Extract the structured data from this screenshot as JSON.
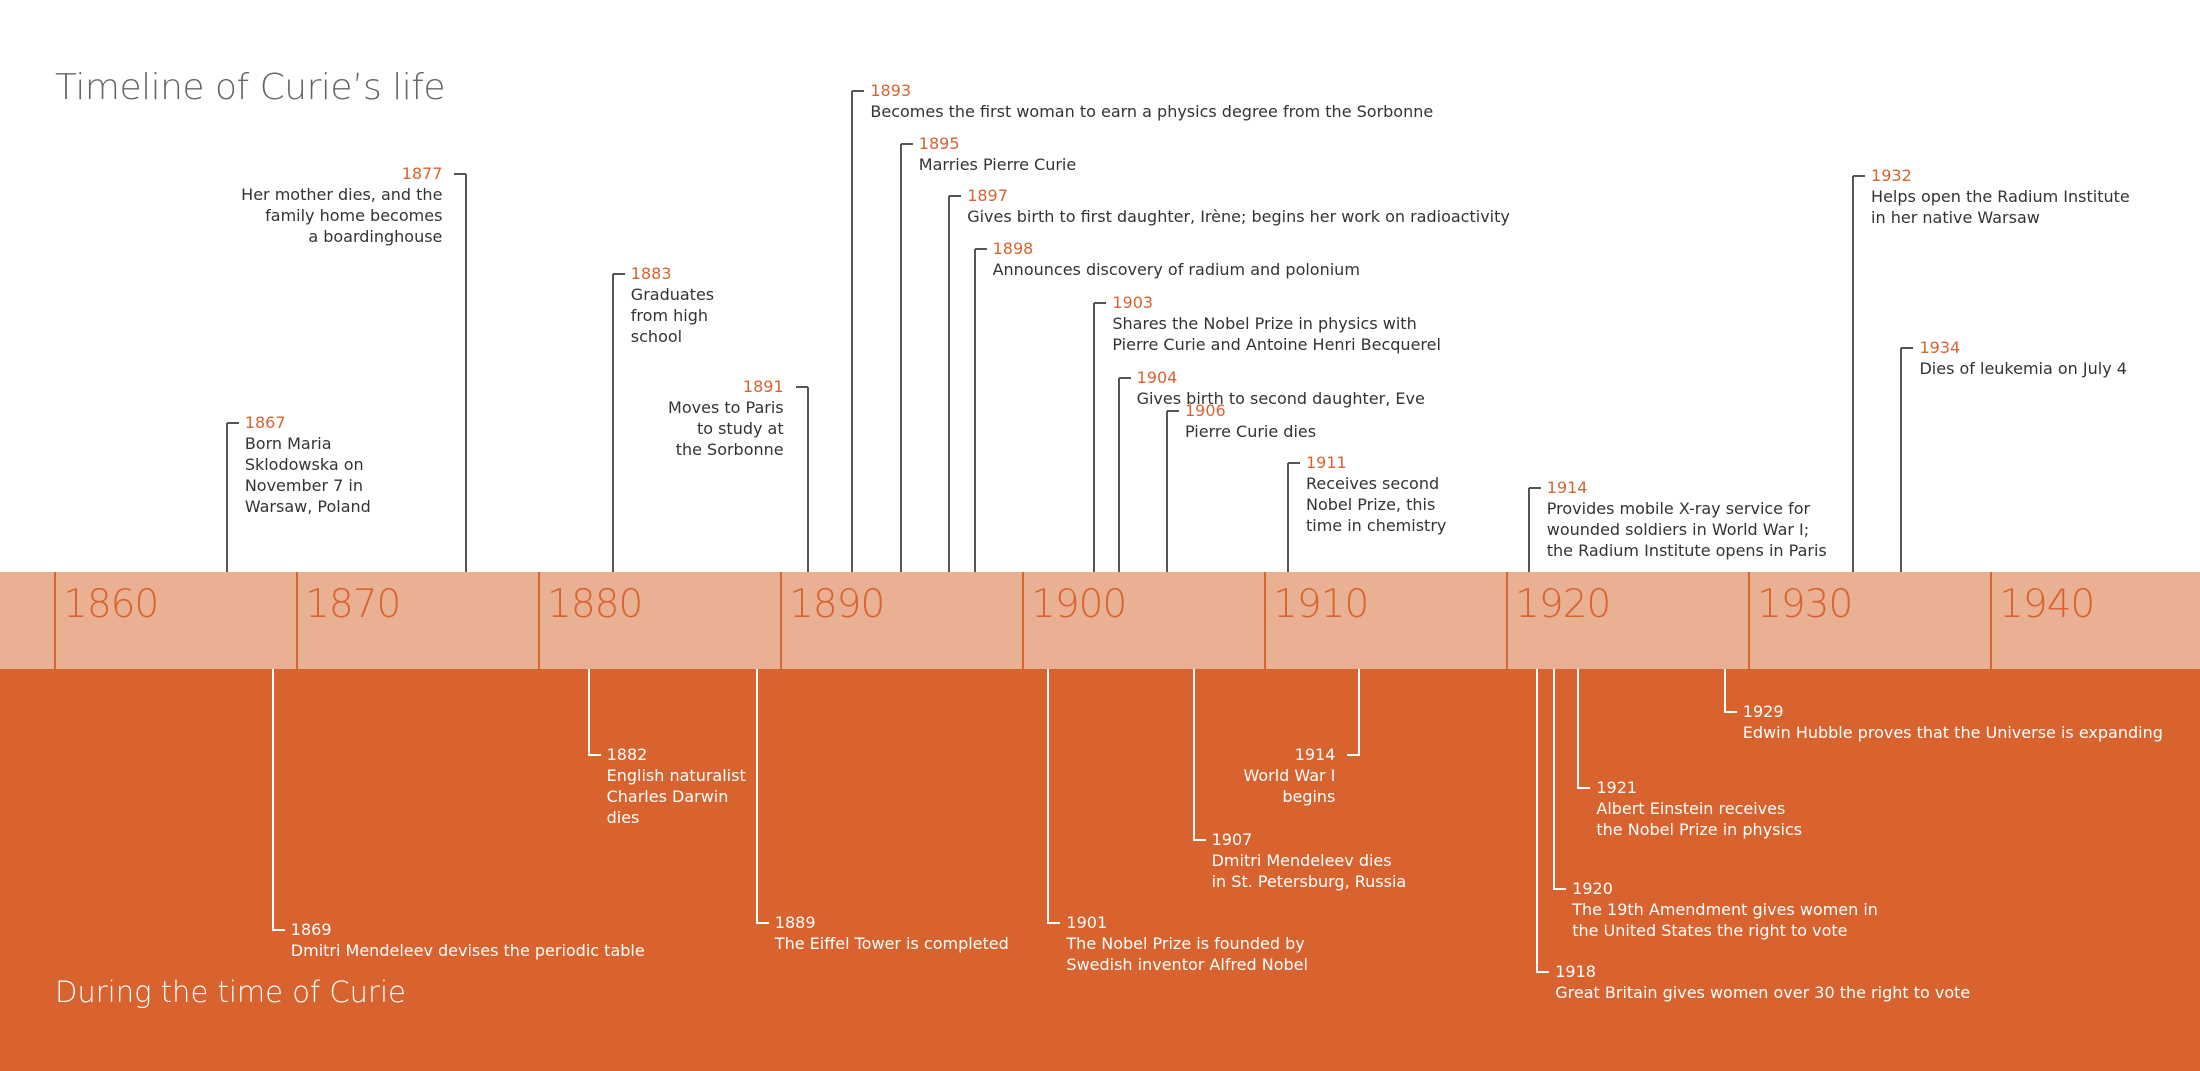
{
  "title": "Timeline of Curie’s life",
  "subtitle": "During the time of Curie",
  "colors": {
    "band": "#eab094",
    "lower": "#d9632f",
    "accent": "#d9632f",
    "text": "#333333",
    "line": "#555555",
    "white": "#ffffff"
  },
  "axis": {
    "start_year": 1860,
    "end_year": 1940
  },
  "decades": [
    "1860",
    "1870",
    "1880",
    "1890",
    "1900",
    "1910",
    "1920",
    "1930",
    "1940"
  ],
  "curie_events": [
    {
      "year": "1867",
      "date": 1867.1,
      "text": "Born Maria\nSklodowska on\nNovember 7 in\nWarsaw, Poland",
      "level": 1,
      "side": "right"
    },
    {
      "year": "1877",
      "date": 1877.0,
      "text": "Her mother dies, and the\nfamily home becomes\na boardinghouse",
      "level": 2,
      "side": "left"
    },
    {
      "year": "1883",
      "date": 1883.05,
      "text": "Graduates\nfrom high\nschool",
      "level": 3,
      "side": "right"
    },
    {
      "year": "1891",
      "date": 1891.1,
      "text": "Moves to Paris\nto study at\nthe Sorbonne",
      "level": 4,
      "side": "left"
    },
    {
      "year": "1893",
      "date": 1892.95,
      "text": "Becomes the first woman to earn a physics degree from the Sorbonne",
      "level": 5,
      "side": "right"
    },
    {
      "year": "1895",
      "date": 1894.95,
      "text": "Marries Pierre Curie",
      "level": 6,
      "side": "right"
    },
    {
      "year": "1897",
      "date": 1896.95,
      "text": "Gives birth to first daughter, Irène; begins her work on radioactivity",
      "level": 7,
      "side": "right"
    },
    {
      "year": "1898",
      "date": 1898.0,
      "text": "Announces discovery of radium and polonium",
      "level": 8,
      "side": "right"
    },
    {
      "year": "1903",
      "date": 1902.95,
      "text": "Shares the Nobel Prize in physics with\nPierre Curie and Antoine Henri Becquerel",
      "level": 9,
      "side": "right"
    },
    {
      "year": "1904",
      "date": 1903.95,
      "text": "Gives birth to second daughter, Eve",
      "level": 10,
      "side": "right"
    },
    {
      "year": "1906",
      "date": 1905.95,
      "text": "Pierre Curie dies",
      "level": 11,
      "side": "right"
    },
    {
      "year": "1911",
      "date": 1910.95,
      "text": "Receives second\nNobel Prize, this\ntime in chemistry",
      "level": 12,
      "side": "right"
    },
    {
      "year": "1914",
      "date": 1920.9,
      "text": "Provides mobile X-ray service for\nwounded soldiers in World War I;\nthe Radium Institute opens in Paris",
      "level": 13,
      "side": "right"
    },
    {
      "year": "1932",
      "date": 1934.3,
      "text": "Helps open the Radium Institute\nin her native Warsaw",
      "level": 14,
      "side": "right"
    },
    {
      "year": "1934",
      "date": 1936.3,
      "text": "Dies of leukemia on July 4",
      "level": 15,
      "side": "right"
    }
  ],
  "world_events": [
    {
      "year": "1869",
      "date": 1869.0,
      "text": "Dmitri Mendeleev devises the periodic table",
      "level": 1,
      "side": "right"
    },
    {
      "year": "1882",
      "date": 1882.05,
      "text": "English naturalist\nCharles Darwin\ndies",
      "level": 2,
      "side": "right"
    },
    {
      "year": "1889",
      "date": 1889.0,
      "text": "The Eiffel Tower is completed",
      "level": 3,
      "side": "right"
    },
    {
      "year": "1901",
      "date": 1901.05,
      "text": "The Nobel Prize is founded by\nSwedish inventor Alfred Nobel",
      "level": 4,
      "side": "right"
    },
    {
      "year": "1907",
      "date": 1907.05,
      "text": "Dmitri Mendeleev dies\nin St. Petersburg, Russia",
      "level": 5,
      "side": "right"
    },
    {
      "year": "1914",
      "date": 1913.9,
      "text": "World War I\nbegins",
      "level": 6,
      "side": "left"
    },
    {
      "year": "1918",
      "date": 1921.25,
      "text": "Great Britain gives women over 30 the right to vote",
      "level": 7,
      "side": "right"
    },
    {
      "year": "1920",
      "date": 1921.95,
      "text": "The 19th Amendment gives women in\nthe United States the right to vote",
      "level": 8,
      "side": "right"
    },
    {
      "year": "1921",
      "date": 1922.95,
      "text": "Albert Einstein receives\nthe Nobel Prize in physics",
      "level": 9,
      "side": "right"
    },
    {
      "year": "1929",
      "date": 1929.0,
      "text": "Edwin Hubble proves that the Universe is expanding",
      "level": 10,
      "side": "right"
    }
  ]
}
